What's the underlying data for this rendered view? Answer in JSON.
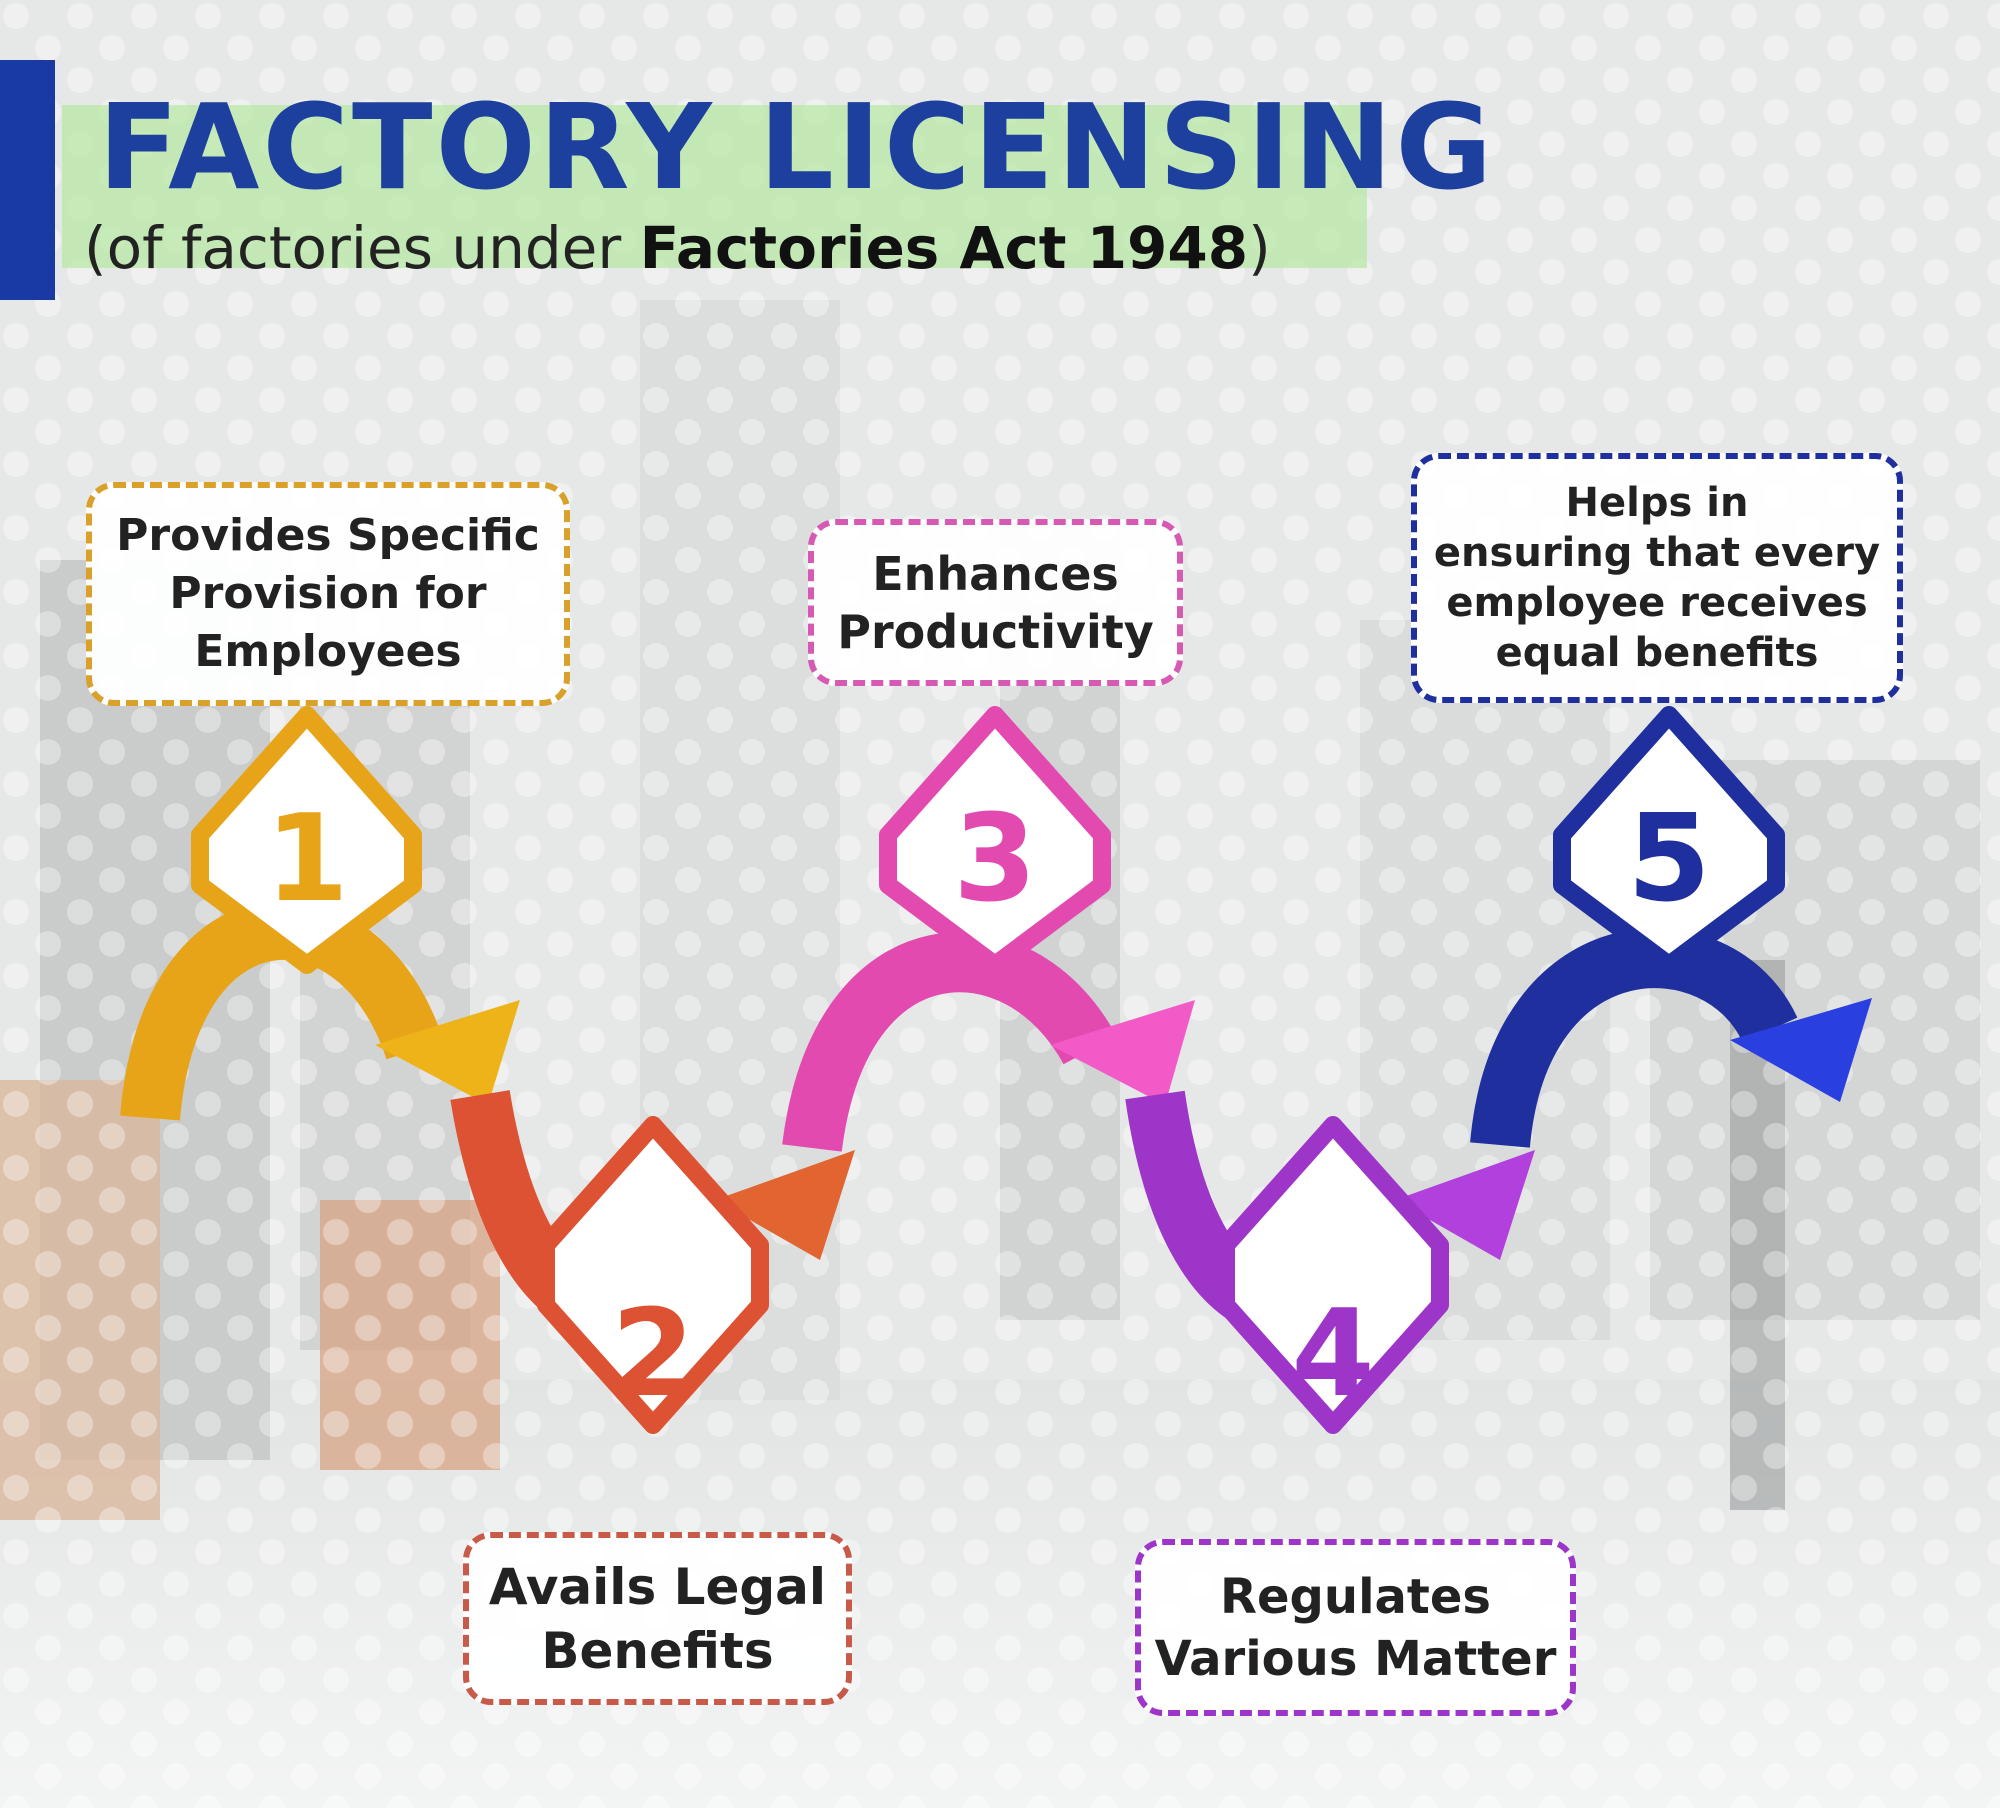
{
  "header": {
    "title": "FACTORY LICENSING",
    "subtitle_prefix": "(of factories under ",
    "subtitle_bold": "Factories Act 1948",
    "subtitle_suffix": ")"
  },
  "steps": [
    {
      "number": "1",
      "text": "Provides Specific\nProvision for\nEmployees",
      "color": "#e7a418"
    },
    {
      "number": "2",
      "text": "Avails Legal\nBenefits",
      "color": "#dc5233"
    },
    {
      "number": "3",
      "text": "Enhances\nProductivity",
      "color": "#e24ab0"
    },
    {
      "number": "4",
      "text": "Regulates\nVarious Matter",
      "color": "#9e35c9"
    },
    {
      "number": "5",
      "text": "Helps in\nensuring that every\nemployee receives\nequal benefits",
      "color": "#1f2f9e"
    }
  ],
  "colors": {
    "title_blue": "#1d3f9e",
    "accent_bar": "#1a3aa3",
    "title_highlight": "#a5e68c"
  }
}
